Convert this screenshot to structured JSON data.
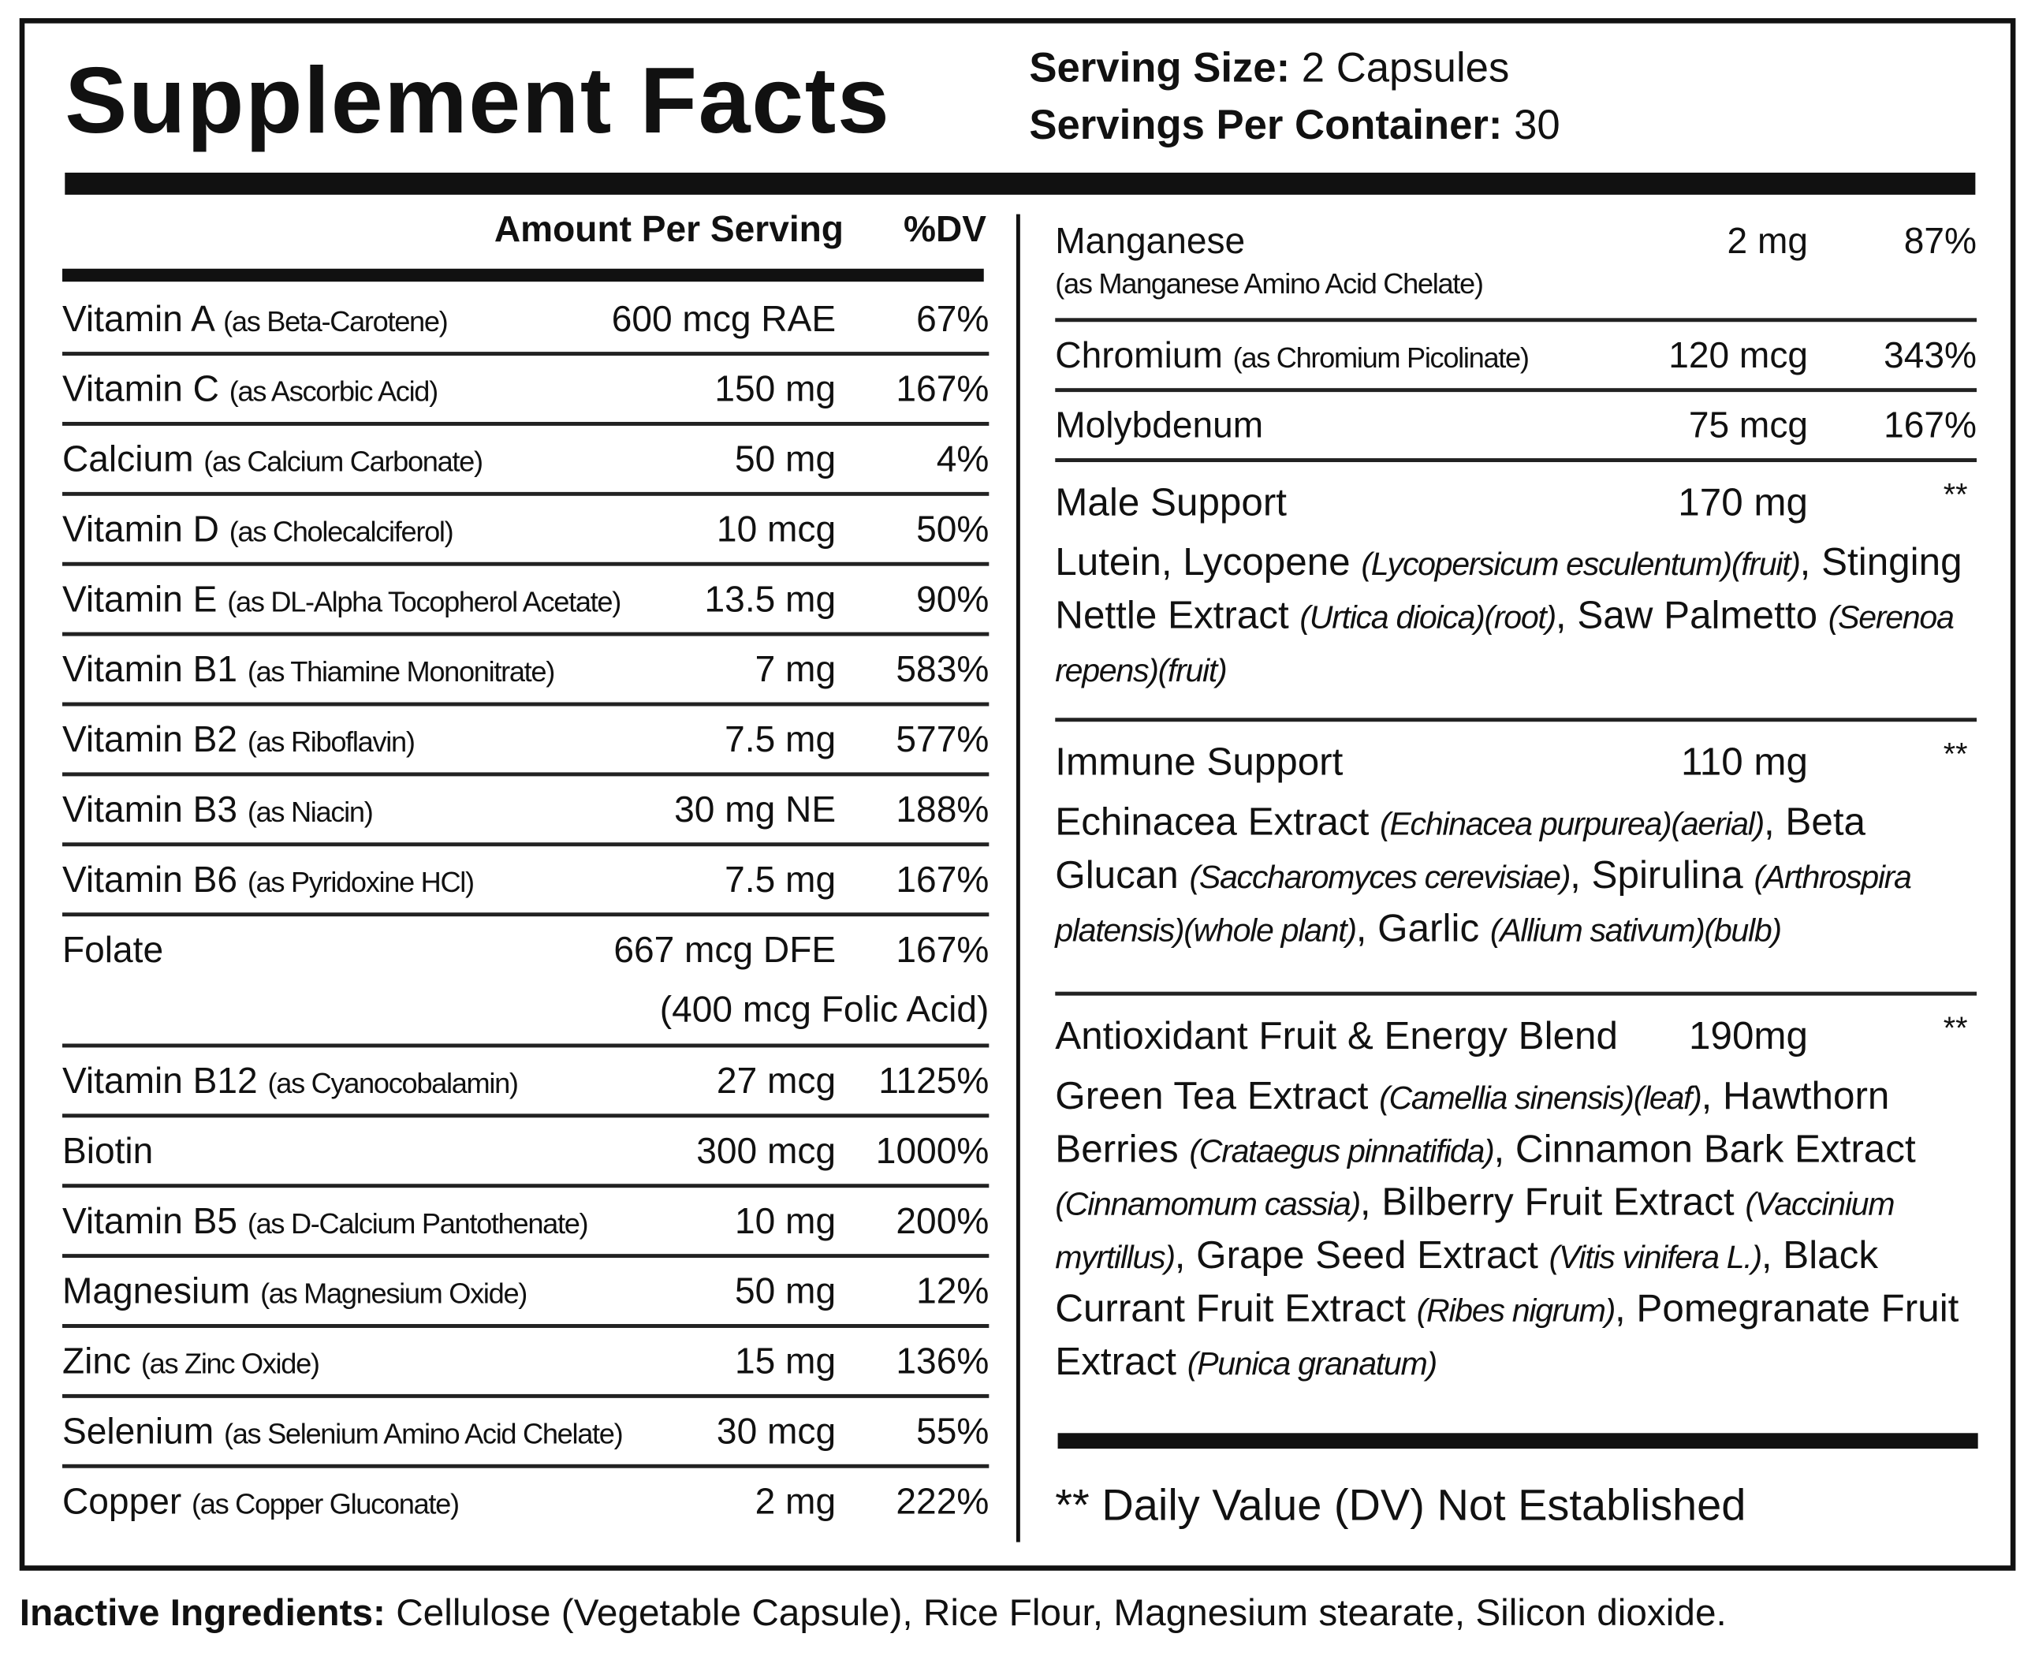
{
  "title": "Supplement Facts",
  "serving": [
    {
      "label": "Serving Size:",
      "value": "2 Capsules"
    },
    {
      "label": "Servings Per Container:",
      "value": "30"
    }
  ],
  "left": {
    "header": {
      "amount": "Amount Per Serving",
      "dv": "%DV"
    },
    "rows": [
      {
        "name": "Vitamin A",
        "source": "(as Beta-Carotene)",
        "amount": "600 mcg RAE",
        "dv": "67%"
      },
      {
        "name": "Vitamin C",
        "source": "(as Ascorbic Acid)",
        "amount": "150 mg",
        "dv": "167%"
      },
      {
        "name": "Calcium",
        "source": "(as Calcium Carbonate)",
        "amount": "50 mg",
        "dv": "4%"
      },
      {
        "name": "Vitamin D",
        "source": "(as Cholecalciferol)",
        "amount": "10 mcg",
        "dv": "50%"
      },
      {
        "name": "Vitamin E",
        "source": "(as DL-Alpha Tocopherol Acetate)",
        "amount": "13.5 mg",
        "dv": "90%"
      },
      {
        "name": "Vitamin B1",
        "source": "(as Thiamine Mononitrate)",
        "amount": "7 mg",
        "dv": "583%"
      },
      {
        "name": "Vitamin B2",
        "source": "(as Riboflavin)",
        "amount": "7.5 mg",
        "dv": "577%"
      },
      {
        "name": "Vitamin B3",
        "source": "(as Niacin)",
        "amount": "30 mg NE",
        "dv": "188%"
      },
      {
        "name": "Vitamin B6",
        "source": "(as Pyridoxine HCl)",
        "amount": "7.5 mg",
        "dv": "167%"
      },
      {
        "name": "Folate",
        "amount": "667 mcg DFE",
        "dv": "167%",
        "note": "(400 mcg Folic Acid)"
      },
      {
        "name": "Vitamin B12",
        "source": "(as Cyanocobalamin)",
        "amount": "27 mcg",
        "dv": "1125%"
      },
      {
        "name": "Biotin",
        "amount": "300 mcg",
        "dv": "1000%"
      },
      {
        "name": "Vitamin B5",
        "source": "(as D-Calcium Pantothenate)",
        "amount": "10 mg",
        "dv": "200%"
      },
      {
        "name": "Magnesium",
        "source": "(as Magnesium Oxide)",
        "amount": "50 mg",
        "dv": "12%"
      },
      {
        "name": "Zinc",
        "source": "(as Zinc Oxide)",
        "amount": "15 mg",
        "dv": "136%"
      },
      {
        "name": "Selenium",
        "source": "(as Selenium Amino Acid Chelate)",
        "amount": "30 mcg",
        "dv": "55%"
      },
      {
        "name": "Copper",
        "source": "(as Copper Gluconate)",
        "amount": "2 mg",
        "dv": "222%"
      }
    ]
  },
  "right": {
    "rows": [
      {
        "name": "Manganese",
        "source": "(as Manganese Amino Acid Chelate)",
        "amount": "2 mg",
        "dv": "87%",
        "source_on_new_line": true
      },
      {
        "name": "Chromium",
        "source": "(as Chromium Picolinate)",
        "amount": "120 mcg",
        "dv": "343%"
      },
      {
        "name": "Molybdenum",
        "amount": "75 mcg",
        "dv": "167%"
      }
    ],
    "blends": [
      {
        "name": "Male Support",
        "amount": "170 mg",
        "dv": "**",
        "ingredients": [
          {
            "text": "Lutein, Lycopene "
          },
          {
            "text": "(Lycopersicum esculentum)(fruit)",
            "italic": true
          },
          {
            "text": ", Stinging Nettle Extract "
          },
          {
            "text": "(Urtica dioica)(root)",
            "italic": true
          },
          {
            "text": ", Saw Palmetto "
          },
          {
            "text": "(Serenoa repens)(fruit)",
            "italic": true
          }
        ]
      },
      {
        "name": "Immune Support",
        "amount": "110 mg",
        "dv": "**",
        "ingredients": [
          {
            "text": "Echinacea Extract "
          },
          {
            "text": "(Echinacea purpurea)(aerial)",
            "italic": true
          },
          {
            "text": ", Beta Glucan "
          },
          {
            "text": "(Saccharomyces cerevisiae)",
            "italic": true
          },
          {
            "text": ", Spirulina "
          },
          {
            "text": "(Arthrospira platensis)(whole plant)",
            "italic": true
          },
          {
            "text": ", Garlic "
          },
          {
            "text": "(Allium sativum)(bulb)",
            "italic": true
          }
        ]
      },
      {
        "name": "Antioxidant Fruit & Energy Blend",
        "amount": "190mg",
        "dv": "**",
        "ingredients": [
          {
            "text": "Green Tea Extract "
          },
          {
            "text": "(Camellia sinensis)(leaf)",
            "italic": true
          },
          {
            "text": ", Hawthorn Berries "
          },
          {
            "text": "(Crataegus pinnatifida)",
            "italic": true
          },
          {
            "text": ", Cinnamon Bark Extract "
          },
          {
            "text": "(Cinnamomum cassia)",
            "italic": true
          },
          {
            "text": ", Bilberry Fruit Extract "
          },
          {
            "text": "(Vaccinium myrtillus)",
            "italic": true
          },
          {
            "text": ", Grape Seed Extract "
          },
          {
            "text": "(Vitis vinifera L.)",
            "italic": true
          },
          {
            "text": ", Black Currant Fruit Extract "
          },
          {
            "text": "(Ribes nigrum)",
            "italic": true
          },
          {
            "text": ", Pomegranate Fruit Extract "
          },
          {
            "text": "(Punica granatum)",
            "italic": true
          }
        ]
      }
    ]
  },
  "footnote": "** Daily Value (DV) Not Established",
  "inactive": {
    "label": "Inactive Ingredients:",
    "text": "Cellulose (Vegetable Capsule), Rice Flour, Magnesium stearate, Silicon dioxide."
  }
}
